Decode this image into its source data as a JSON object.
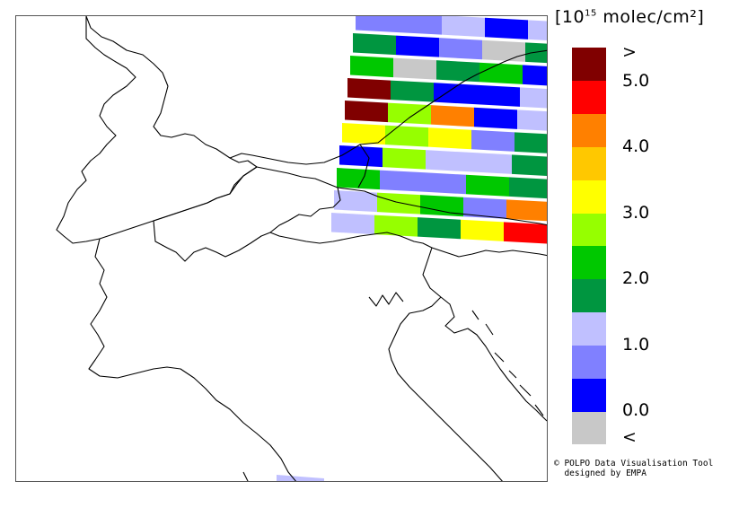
{
  "legend": {
    "unit_prefix": "[10",
    "unit_exponent": "15",
    "unit_suffix": " molec/cm²]",
    "colors": [
      "#c8c8c8",
      "#0000ff",
      "#8080ff",
      "#c0c0ff",
      "#009640",
      "#00c800",
      "#96ff00",
      "#ffff00",
      "#ffc800",
      "#ff8000",
      "#ff0000",
      "#800000"
    ],
    "tick_labels": [
      ">",
      "5.0",
      "4.0",
      "3.0",
      "2.0",
      "1.0",
      "0.0",
      "<"
    ]
  },
  "credit": {
    "line1": "© POLPO Data Visualisation Tool",
    "line2": "  designed by EMPA"
  },
  "pixel_rows": [
    [
      "#8080ff",
      "#8080ff",
      "#c0c0ff",
      "#0000ff",
      "#c0c0ff"
    ],
    [
      "#009640",
      "#0000ff",
      "#8080ff",
      "#c8c8c8",
      "#009640"
    ],
    [
      "#00c800",
      "#c8c8c8",
      "#009640",
      "#00c800",
      "#0000ff"
    ],
    [
      "#800000",
      "#009640",
      "#0000ff",
      "#0000ff",
      "#c0c0ff"
    ],
    [
      "#800000",
      "#96ff00",
      "#ff8000",
      "#0000ff",
      "#c0c0ff"
    ],
    [
      "#ffff00",
      "#96ff00",
      "#ffff00",
      "#8080ff",
      "#009640"
    ],
    [
      "#0000ff",
      "#96ff00",
      "#c0c0ff",
      "#c0c0ff",
      "#009640"
    ],
    [
      "#00c800",
      "#8080ff",
      "#8080ff",
      "#00c800",
      "#009640"
    ],
    [
      "#c0c0ff",
      "#96ff00",
      "#00c800",
      "#8080ff",
      "#ff8000"
    ],
    [
      "#c0c0ff",
      "#96ff00",
      "#009640",
      "#ffff00",
      "#ff0000"
    ]
  ]
}
